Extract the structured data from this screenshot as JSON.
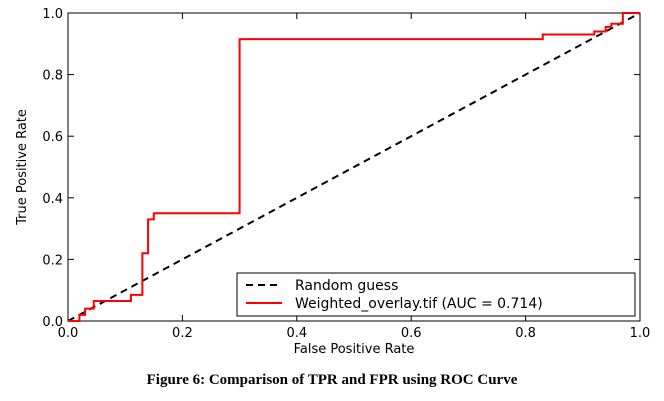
{
  "caption": "Figure 6: Comparison of TPR and FPR using ROC Curve",
  "chart_data": {
    "type": "line",
    "xlabel": "False Positive Rate",
    "ylabel": "True Positive Rate",
    "xlim": [
      0.0,
      1.0
    ],
    "ylim": [
      0.0,
      1.0
    ],
    "xticks": [
      "0.0",
      "0.2",
      "0.4",
      "0.6",
      "0.8",
      "1.0"
    ],
    "yticks": [
      "0.0",
      "0.2",
      "0.4",
      "0.6",
      "0.8",
      "1.0"
    ],
    "grid": false,
    "legend_position": "lower-right",
    "series": [
      {
        "name": "Random guess",
        "style": "dashed",
        "color": "#000000",
        "x": [
          0.0,
          1.0
        ],
        "y": [
          0.0,
          1.0
        ]
      },
      {
        "name": "Weighted_overlay.tif (AUC = 0.714)",
        "style": "solid",
        "color": "#ff0000",
        "x": [
          0.0,
          0.0,
          0.02,
          0.02,
          0.03,
          0.03,
          0.045,
          0.045,
          0.11,
          0.11,
          0.13,
          0.13,
          0.14,
          0.14,
          0.15,
          0.15,
          0.3,
          0.3,
          0.83,
          0.83,
          0.92,
          0.92,
          0.94,
          0.94,
          0.95,
          0.95,
          0.97,
          0.97,
          1.0
        ],
        "y": [
          0.0,
          0.0,
          0.0,
          0.02,
          0.02,
          0.04,
          0.04,
          0.065,
          0.065,
          0.085,
          0.085,
          0.22,
          0.22,
          0.33,
          0.33,
          0.35,
          0.35,
          0.915,
          0.915,
          0.93,
          0.93,
          0.94,
          0.94,
          0.955,
          0.955,
          0.965,
          0.965,
          1.0,
          1.0
        ]
      }
    ]
  }
}
